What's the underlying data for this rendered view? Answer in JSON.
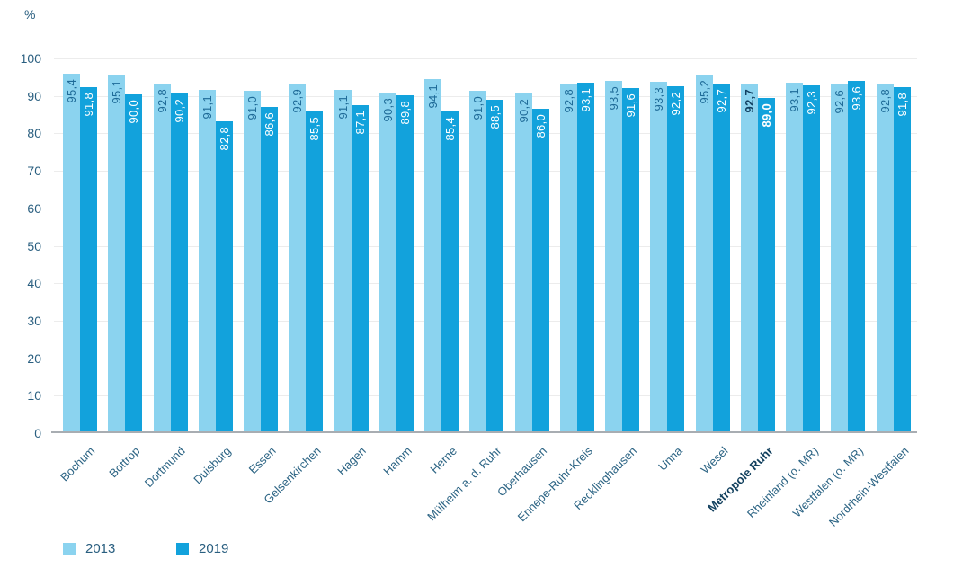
{
  "chart_data": {
    "type": "bar",
    "title": "",
    "ylabel": "%",
    "xlabel": "",
    "ylim": [
      0,
      100
    ],
    "yticks": [
      "0",
      "10",
      "20",
      "30",
      "40",
      "50",
      "60",
      "70",
      "80",
      "90",
      "100"
    ],
    "grid": "horizontal",
    "legend_position": "bottom-left",
    "categories": [
      "Bochum",
      "Bottrop",
      "Dortmund",
      "Duisburg",
      "Essen",
      "Gelsenkirchen",
      "Hagen",
      "Hamm",
      "Herne",
      "Mülheim a. d. Ruhr",
      "Oberhausen",
      "Ennepe-Ruhr-Kreis",
      "Recklinghausen",
      "Unna",
      "Wesel",
      "Metropole Ruhr",
      "Rheinland (o. MR)",
      "Westfalen (o. MR)",
      "Nordrhein-Westfalen"
    ],
    "emphasis_index": 15,
    "series": [
      {
        "name": "2013",
        "color": "#8BD3EF",
        "values": [
          95.4,
          95.1,
          92.8,
          91.1,
          91.0,
          92.9,
          91.1,
          90.3,
          94.1,
          91.0,
          90.2,
          92.8,
          93.5,
          93.3,
          95.2,
          92.7,
          93.1,
          92.6,
          92.8
        ],
        "display": [
          "95,4",
          "95,1",
          "92,8",
          "91,1",
          "91,0",
          "92,9",
          "91,1",
          "90,3",
          "94,1",
          "91,0",
          "90,2",
          "92,8",
          "93,5",
          "93,3",
          "95,2",
          "92,7",
          "93,1",
          "92,6",
          "92,8"
        ]
      },
      {
        "name": "2019",
        "color": "#12A2DC",
        "values": [
          91.8,
          90.0,
          90.2,
          82.8,
          86.6,
          85.5,
          87.1,
          89.8,
          85.4,
          88.5,
          86.0,
          93.1,
          91.6,
          92.2,
          92.7,
          89.0,
          92.3,
          93.6,
          91.8
        ],
        "display": [
          "91,8",
          "90,0",
          "90,2",
          "82,8",
          "86,6",
          "85,5",
          "87,1",
          "89,8",
          "85,4",
          "88,5",
          "86,0",
          "93,1",
          "91,6",
          "92,2",
          "92,7",
          "89,0",
          "92,3",
          "93,6",
          "91,8"
        ]
      }
    ],
    "legend": [
      {
        "label": "2013",
        "color": "#8BD3EF"
      },
      {
        "label": "2019",
        "color": "#12A2DC"
      }
    ]
  }
}
